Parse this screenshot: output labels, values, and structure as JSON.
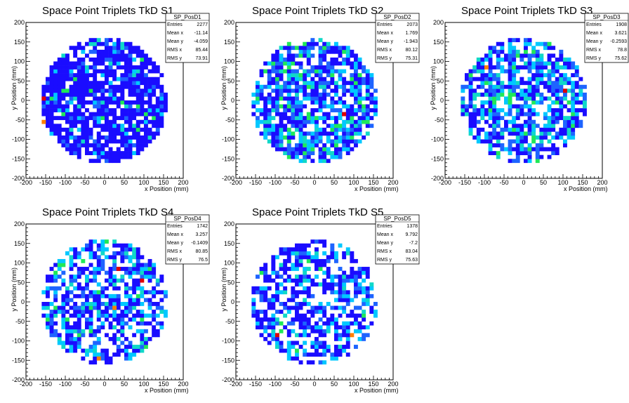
{
  "colors": {
    "palette": [
      "#1a0cff",
      "#1e64ff",
      "#00c8ff",
      "#10d8c8",
      "#20e858",
      "#e8e800",
      "#ff8000",
      "#e00000"
    ]
  },
  "chart_data": [
    {
      "type": "heatmap",
      "title": "Space Point Triplets TkD S1",
      "xlabel": "x Position (mm)",
      "ylabel": "y Position (mm)",
      "xlim": [
        -200,
        200
      ],
      "ylim": [
        -200,
        200
      ],
      "xticks": [
        -200,
        -150,
        -100,
        -50,
        0,
        50,
        100,
        150,
        200
      ],
      "yticks": [
        -200,
        -150,
        -100,
        -50,
        0,
        50,
        100,
        150,
        200
      ],
      "stats": {
        "name": "SP_PosD1",
        "rows": [
          [
            "Entries",
            "2277"
          ],
          [
            "Mean x",
            "-11.14"
          ],
          [
            "Mean y",
            "-4.059"
          ],
          [
            "RMS x",
            "85.44"
          ],
          [
            "RMS y",
            "73.91"
          ]
        ]
      },
      "bin_width_mm": 10,
      "circle_radius_mm": 160,
      "fill_fraction": 0.82,
      "intensity_levels": [
        0.8,
        0.1,
        0.06,
        0.03,
        0.01
      ],
      "hot_bins": [
        [
          -160,
          0
        ],
        [
          -160,
          -60
        ]
      ],
      "seed": 11
    },
    {
      "type": "heatmap",
      "title": "Space Point Triplets TkD S2",
      "xlabel": "x Position (mm)",
      "ylabel": "y Position (mm)",
      "xlim": [
        -200,
        200
      ],
      "ylim": [
        -200,
        200
      ],
      "xticks": [
        -200,
        -150,
        -100,
        -50,
        0,
        50,
        100,
        150,
        200
      ],
      "yticks": [
        -200,
        -150,
        -100,
        -50,
        0,
        50,
        100,
        150,
        200
      ],
      "stats": {
        "name": "SP_PosD2",
        "rows": [
          [
            "Entries",
            "2073"
          ],
          [
            "Mean x",
            "1.769"
          ],
          [
            "Mean y",
            "-1.943"
          ],
          [
            "RMS x",
            "80.12"
          ],
          [
            "RMS y",
            "75.31"
          ]
        ]
      },
      "bin_width_mm": 10,
      "circle_radius_mm": 160,
      "fill_fraction": 0.72,
      "intensity_levels": [
        0.45,
        0.2,
        0.22,
        0.08,
        0.05
      ],
      "hot_bins": [
        [
          70,
          -40
        ]
      ],
      "seed": 22
    },
    {
      "type": "heatmap",
      "title": "Space Point Triplets TkD S3",
      "xlabel": "x Position (mm)",
      "ylabel": "y Position (mm)",
      "xlim": [
        -200,
        200
      ],
      "ylim": [
        -200,
        200
      ],
      "xticks": [
        -200,
        -150,
        -100,
        -50,
        0,
        50,
        100,
        150,
        200
      ],
      "yticks": [
        -200,
        -150,
        -100,
        -50,
        0,
        50,
        100,
        150,
        200
      ],
      "stats": {
        "name": "SP_PosD3",
        "rows": [
          [
            "Entries",
            "1908"
          ],
          [
            "Mean x",
            "3.621"
          ],
          [
            "Mean y",
            "-0.2593"
          ],
          [
            "RMS x",
            "78.8"
          ],
          [
            "RMS y",
            "75.62"
          ]
        ]
      },
      "bin_width_mm": 10,
      "circle_radius_mm": 160,
      "fill_fraction": 0.66,
      "intensity_levels": [
        0.42,
        0.2,
        0.24,
        0.09,
        0.05
      ],
      "hot_bins": [
        [
          100,
          20
        ],
        [
          -100,
          80
        ]
      ],
      "seed": 33
    },
    {
      "type": "heatmap",
      "title": "Space Point Triplets TkD S4",
      "xlabel": "x Position (mm)",
      "ylabel": "y Position (mm)",
      "xlim": [
        -200,
        200
      ],
      "ylim": [
        -200,
        200
      ],
      "xticks": [
        -200,
        -150,
        -100,
        -50,
        0,
        50,
        100,
        150,
        200
      ],
      "yticks": [
        -200,
        -150,
        -100,
        -50,
        0,
        50,
        100,
        150,
        200
      ],
      "stats": {
        "name": "SP_PosD4",
        "rows": [
          [
            "Entries",
            "1742"
          ],
          [
            "Mean x",
            "3.257"
          ],
          [
            "Mean y",
            "-0.1409"
          ],
          [
            "RMS x",
            "80.85"
          ],
          [
            "RMS y",
            "76.5"
          ]
        ]
      },
      "bin_width_mm": 10,
      "circle_radius_mm": 160,
      "fill_fraction": 0.64,
      "intensity_levels": [
        0.48,
        0.18,
        0.22,
        0.08,
        0.04
      ],
      "hot_bins": [
        [
          30,
          80
        ],
        [
          20,
          -20
        ],
        [
          90,
          50
        ],
        [
          -20,
          -150
        ]
      ],
      "seed": 44
    },
    {
      "type": "heatmap",
      "title": "Space Point Triplets TkD S5",
      "xlabel": "x Position (mm)",
      "ylabel": "y Position (mm)",
      "xlim": [
        -200,
        200
      ],
      "ylim": [
        -200,
        200
      ],
      "xticks": [
        -200,
        -150,
        -100,
        -50,
        0,
        50,
        100,
        150,
        200
      ],
      "yticks": [
        -200,
        -150,
        -100,
        -50,
        0,
        50,
        100,
        150,
        200
      ],
      "stats": {
        "name": "SP_PosD5",
        "rows": [
          [
            "Entries",
            "1378"
          ],
          [
            "Mean x",
            "9.792"
          ],
          [
            "Mean y",
            "-7.2"
          ],
          [
            "RMS x",
            "83.04"
          ],
          [
            "RMS y",
            "75.63"
          ]
        ]
      },
      "bin_width_mm": 10,
      "circle_radius_mm": 160,
      "fill_fraction": 0.56,
      "intensity_levels": [
        0.58,
        0.16,
        0.17,
        0.06,
        0.03
      ],
      "hot_bins": [
        [
          -100,
          -90
        ],
        [
          90,
          -90
        ]
      ],
      "seed": 55
    }
  ]
}
